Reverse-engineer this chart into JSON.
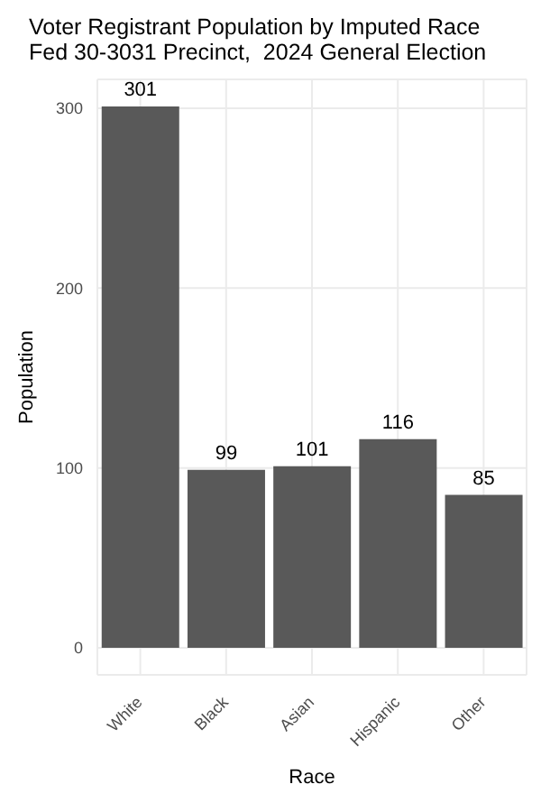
{
  "chart_data": {
    "type": "bar",
    "title": "Voter Registrant Population by Imputed Race",
    "subtitle": "Fed 30-3031 Precinct,  2024 General Election",
    "xlabel": "Race",
    "ylabel": "Population",
    "categories": [
      "White",
      "Black",
      "Asian",
      "Hispanic",
      "Other"
    ],
    "values": [
      301,
      99,
      101,
      116,
      85
    ],
    "color": "#595959",
    "ylim": [
      -15,
      316
    ],
    "yticks": [
      0,
      100,
      200,
      300
    ],
    "grid": true,
    "data_labels": true
  }
}
